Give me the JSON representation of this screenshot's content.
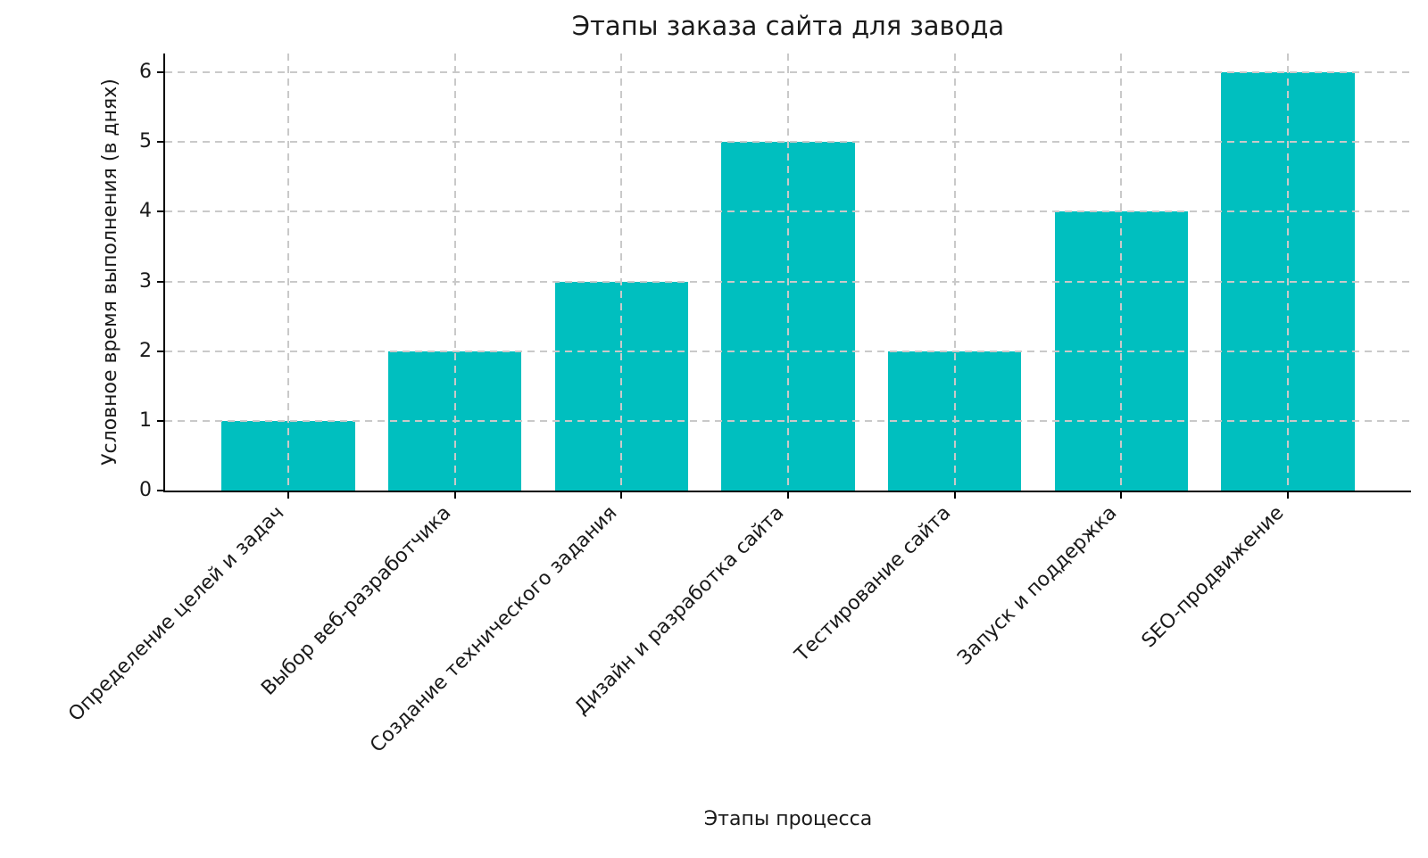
{
  "chart_data": {
    "type": "bar",
    "title": "Этапы заказа сайта для завода",
    "xlabel": "Этапы процесса",
    "ylabel": "Условное время выполнения (в днях)",
    "categories": [
      "Определение целей и задач",
      "Выбор веб-разработчика",
      "Создание технического задания",
      "Дизайн и разработка сайта",
      "Тестирование сайта",
      "Запуск и поддержка",
      "SEO-продвижение"
    ],
    "values": [
      1,
      2,
      3,
      5,
      2,
      4,
      6
    ],
    "yticks": [
      0,
      1,
      2,
      3,
      4,
      5,
      6
    ],
    "ylim": [
      0,
      6.27
    ],
    "bar_color": "#00bfbf",
    "grid_color": "#c9c9c9",
    "grid": "both-dashed-over-bars",
    "x_tick_rotation_deg": 45,
    "legend": "none"
  }
}
